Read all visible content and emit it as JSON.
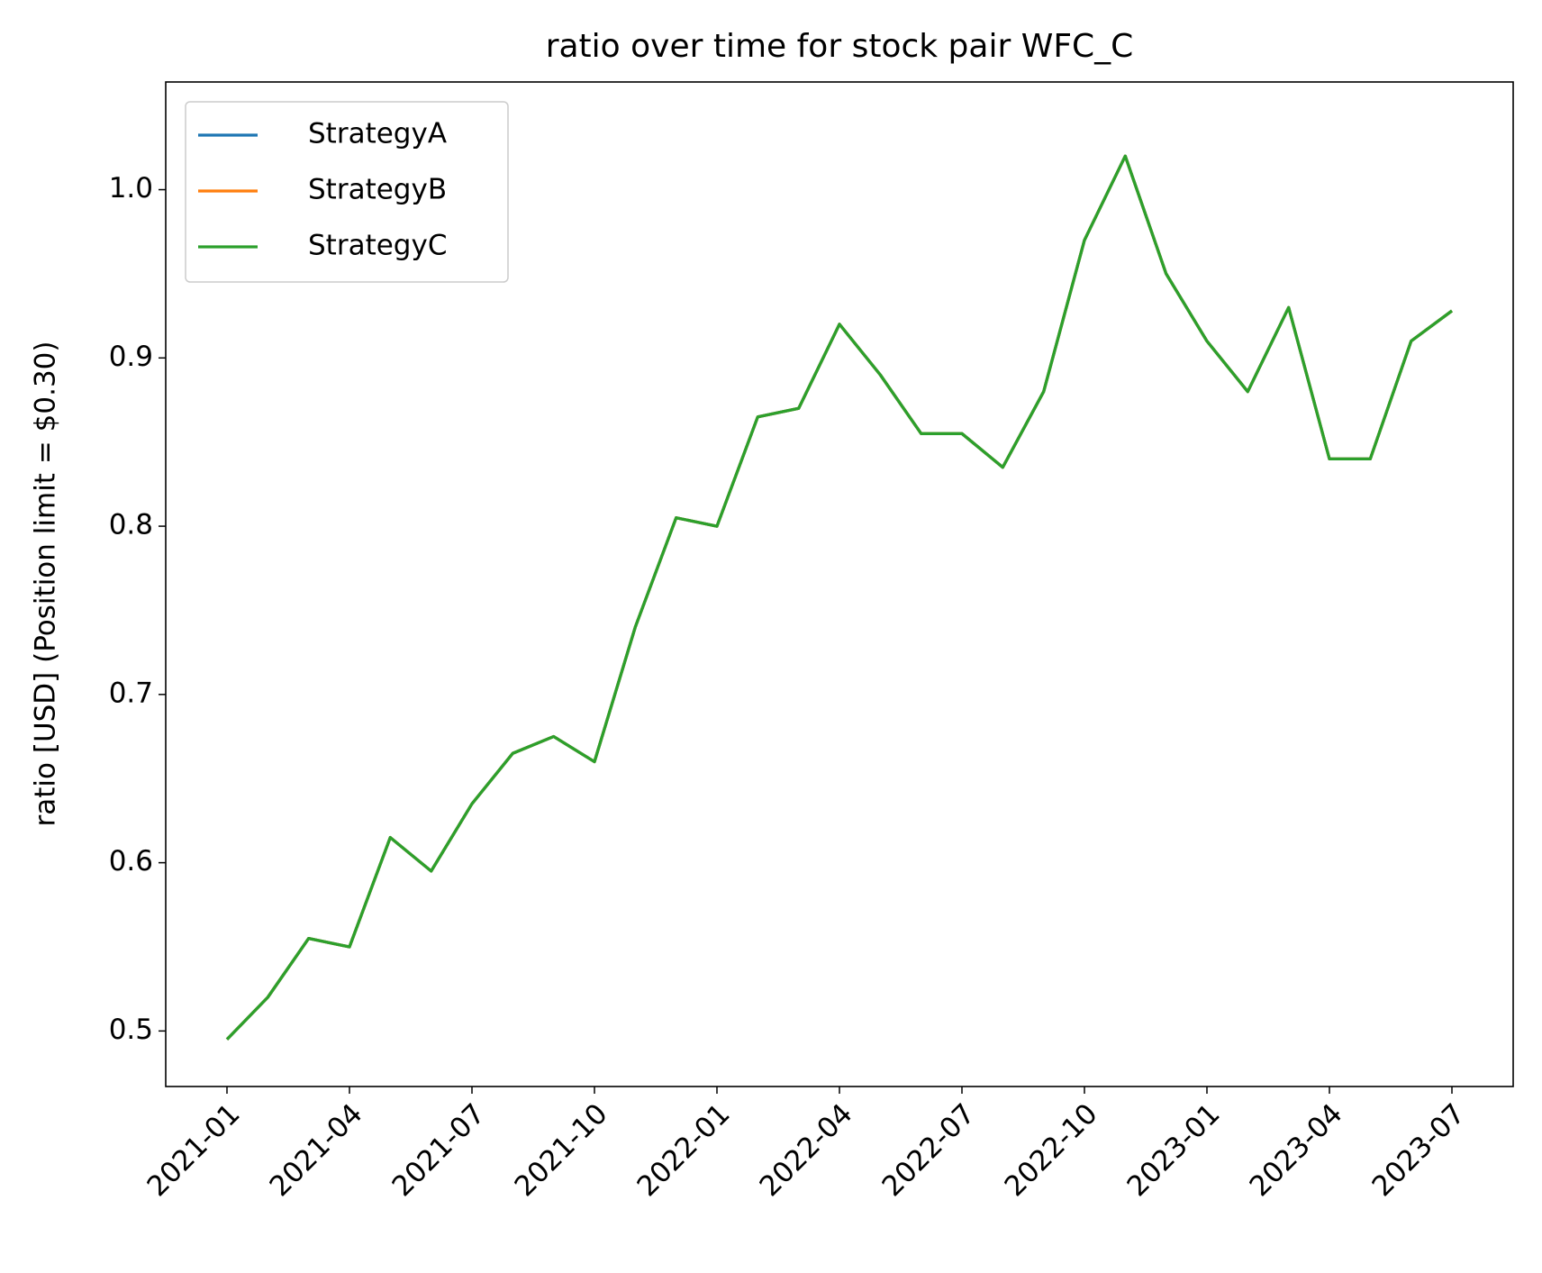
{
  "chart_data": {
    "type": "line",
    "title": "ratio over time for stock pair WFC_C",
    "y_label": "ratio [USD] (Position limit = $0.30)",
    "x": [
      "2021-01",
      "2021-02",
      "2021-03",
      "2021-04",
      "2021-05",
      "2021-06",
      "2021-07",
      "2021-08",
      "2021-09",
      "2021-10",
      "2021-11",
      "2021-12",
      "2022-01",
      "2022-02",
      "2022-03",
      "2022-04",
      "2022-05",
      "2022-06",
      "2022-07",
      "2022-08",
      "2022-09",
      "2022-10",
      "2022-11",
      "2022-12",
      "2023-01",
      "2023-02",
      "2023-03",
      "2023-04",
      "2023-05",
      "2023-06",
      "2023-07"
    ],
    "series": [
      {
        "name": "StrategyA",
        "color": "#1f77b4",
        "values": [
          0.495,
          0.52,
          0.555,
          0.55,
          0.615,
          0.595,
          0.635,
          0.665,
          0.675,
          0.66,
          0.74,
          0.805,
          0.8,
          0.865,
          0.87,
          0.92,
          0.89,
          0.855,
          0.855,
          0.835,
          0.88,
          0.97,
          1.02,
          0.95,
          0.91,
          0.88,
          0.93,
          0.84,
          0.84,
          0.91,
          0.928
        ]
      },
      {
        "name": "StrategyB",
        "color": "#ff7f0e",
        "values": [
          0.495,
          0.52,
          0.555,
          0.55,
          0.615,
          0.595,
          0.635,
          0.665,
          0.675,
          0.66,
          0.74,
          0.805,
          0.8,
          0.865,
          0.87,
          0.92,
          0.89,
          0.855,
          0.855,
          0.835,
          0.88,
          0.97,
          1.02,
          0.95,
          0.91,
          0.88,
          0.93,
          0.84,
          0.84,
          0.91,
          0.928
        ]
      },
      {
        "name": "StrategyC",
        "color": "#2ca02c",
        "values": [
          0.495,
          0.52,
          0.555,
          0.55,
          0.615,
          0.595,
          0.635,
          0.665,
          0.675,
          0.66,
          0.74,
          0.805,
          0.8,
          0.865,
          0.87,
          0.92,
          0.89,
          0.855,
          0.855,
          0.835,
          0.88,
          0.97,
          1.02,
          0.95,
          0.91,
          0.88,
          0.93,
          0.84,
          0.84,
          0.91,
          0.928
        ]
      }
    ],
    "xticks": [
      "2021-01",
      "2021-04",
      "2021-07",
      "2021-10",
      "2022-01",
      "2022-04",
      "2022-07",
      "2022-10",
      "2023-01",
      "2023-04",
      "2023-07"
    ],
    "ylim": [
      0.467,
      1.064
    ],
    "yticks": [
      0.5,
      0.6,
      0.7,
      0.8,
      0.9,
      {
        "value": 1,
        "label": "1.0"
      }
    ],
    "legend": "upper left"
  }
}
